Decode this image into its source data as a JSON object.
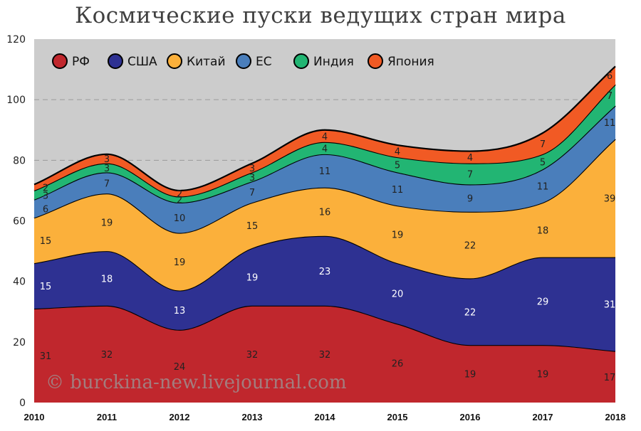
{
  "chart_data": {
    "type": "area",
    "title": "Космические пуски ведущих стран мира",
    "xlabel": "",
    "ylabel": "",
    "x": [
      "2010",
      "2011",
      "2012",
      "2013",
      "2014",
      "2015",
      "2016",
      "2017",
      "2018"
    ],
    "ylim": [
      0,
      120
    ],
    "yticks": [
      0,
      20,
      40,
      60,
      80,
      100,
      120
    ],
    "stacked": true,
    "grid": true,
    "legend_position": "top-left",
    "series": [
      {
        "name": "РФ",
        "color": "#c0272d",
        "values": [
          31,
          32,
          24,
          32,
          32,
          26,
          19,
          19,
          17
        ],
        "label_color": "#222222"
      },
      {
        "name": "США",
        "color": "#2e3192",
        "values": [
          15,
          18,
          13,
          19,
          23,
          20,
          22,
          29,
          31
        ],
        "label_color": "#ffffff"
      },
      {
        "name": "Китай",
        "color": "#fbb03b",
        "values": [
          15,
          19,
          19,
          15,
          16,
          19,
          22,
          18,
          39
        ],
        "label_color": "#222222"
      },
      {
        "name": "ЕС",
        "color": "#4a7ebb",
        "values": [
          6,
          7,
          10,
          7,
          11,
          11,
          9,
          11,
          11
        ],
        "label_color": "#222222"
      },
      {
        "name": "Индия",
        "color": "#22b573",
        "values": [
          3,
          3,
          2,
          3,
          4,
          5,
          7,
          5,
          7
        ],
        "label_color": "#222222"
      },
      {
        "name": "Япония",
        "color": "#f15a24",
        "values": [
          2,
          3,
          2,
          3,
          4,
          4,
          4,
          7,
          6
        ],
        "label_color": "#222222"
      }
    ],
    "background_color": "#cccccc"
  },
  "watermark": "© burckina-new.livejournal.com"
}
